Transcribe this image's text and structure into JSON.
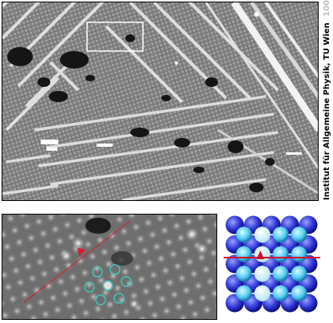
{
  "credit": {
    "text": "Institut für Allgemeine Physik, TU Wien",
    "number": "100/300"
  },
  "top_image": {
    "description_icon": "stm-surface-image",
    "scan_box": true
  },
  "zoom_image": {
    "icon": "stm-zoom-image",
    "arrow_color": "#e0182a",
    "circle_color": "#35d4c8"
  },
  "model": {
    "icon": "ball-model",
    "ball_color": "#3b46e0",
    "highlight_color": "#5fd7ef",
    "line_color": "#d0142a"
  }
}
